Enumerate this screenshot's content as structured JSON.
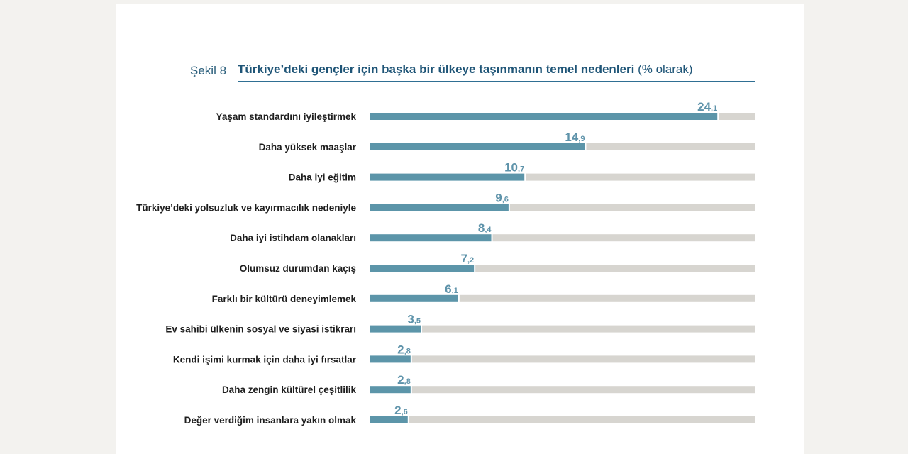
{
  "header": {
    "figure_label": "Şekil 8",
    "title": "Türkiye’deki gençler için başka bir ülkeye taşınmanın temel nedenleri",
    "unit": "(% olarak)"
  },
  "colors": {
    "bar": "#5c95a9",
    "track": "#d7d5d0",
    "value": "#5e93aa",
    "title": "#1f5577"
  },
  "chart_data": {
    "type": "bar",
    "orientation": "horizontal",
    "title": "Türkiye’deki gençler için başka bir ülkeye taşınmanın temel nedenleri (% olarak)",
    "categories": [
      "Yaşam standardını iyileştirmek",
      "Daha yüksek maaşlar",
      "Daha iyi eğitim",
      "Türkiye’deki yolsuzluk ve kayırmacılık nedeniyle",
      "Daha iyi istihdam olanakları",
      "Olumsuz durumdan kaçış",
      "Farklı bir kültürü deneyimlemek",
      "Ev sahibi ülkenin sosyal ve siyasi istikrarı",
      "Kendi işimi kurmak için daha iyi fırsatlar",
      "Daha zengin kültürel çeşitlilik",
      "Değer verdiğim insanlara yakın olmak"
    ],
    "values": [
      24.1,
      14.9,
      10.7,
      9.6,
      8.4,
      7.2,
      6.1,
      3.5,
      2.8,
      2.8,
      2.6
    ],
    "value_labels": [
      "24,1",
      "14,9",
      "10,7",
      "9,6",
      "8,4",
      "7,2",
      "6,1",
      "3,5",
      "2,8",
      "2,8",
      "2,6"
    ],
    "xlim": [
      0,
      26.7
    ],
    "grid": false,
    "legend": "none"
  }
}
